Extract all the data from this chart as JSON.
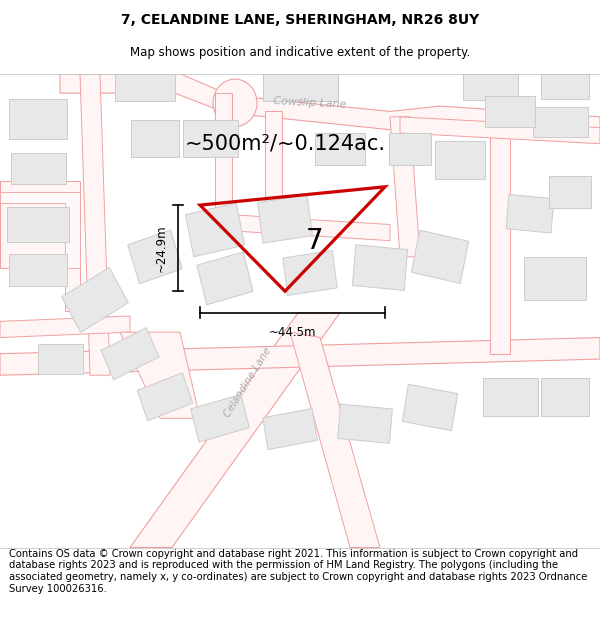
{
  "title": "7, CELANDINE LANE, SHERINGHAM, NR26 8UY",
  "subtitle": "Map shows position and indicative extent of the property.",
  "area_text": "~500m²/~0.124ac.",
  "dim_width": "~44.5m",
  "dim_height": "~24.9m",
  "plot_label": "7",
  "footer": "Contains OS data © Crown copyright and database right 2021. This information is subject to Crown copyright and database rights 2023 and is reproduced with the permission of HM Land Registry. The polygons (including the associated geometry, namely x, y co-ordinates) are subject to Crown copyright and database rights 2023 Ordnance Survey 100026316.",
  "title_fontsize": 10,
  "subtitle_fontsize": 8.5,
  "footer_fontsize": 7.2,
  "road_outline_color": "#f0a0a0",
  "building_face_color": "#e8e8e8",
  "building_edge_color": "#cccccc",
  "plot_outline_color": "#cc0000",
  "road_label_color": "#aaaaaa",
  "map_bg": "#ffffff"
}
